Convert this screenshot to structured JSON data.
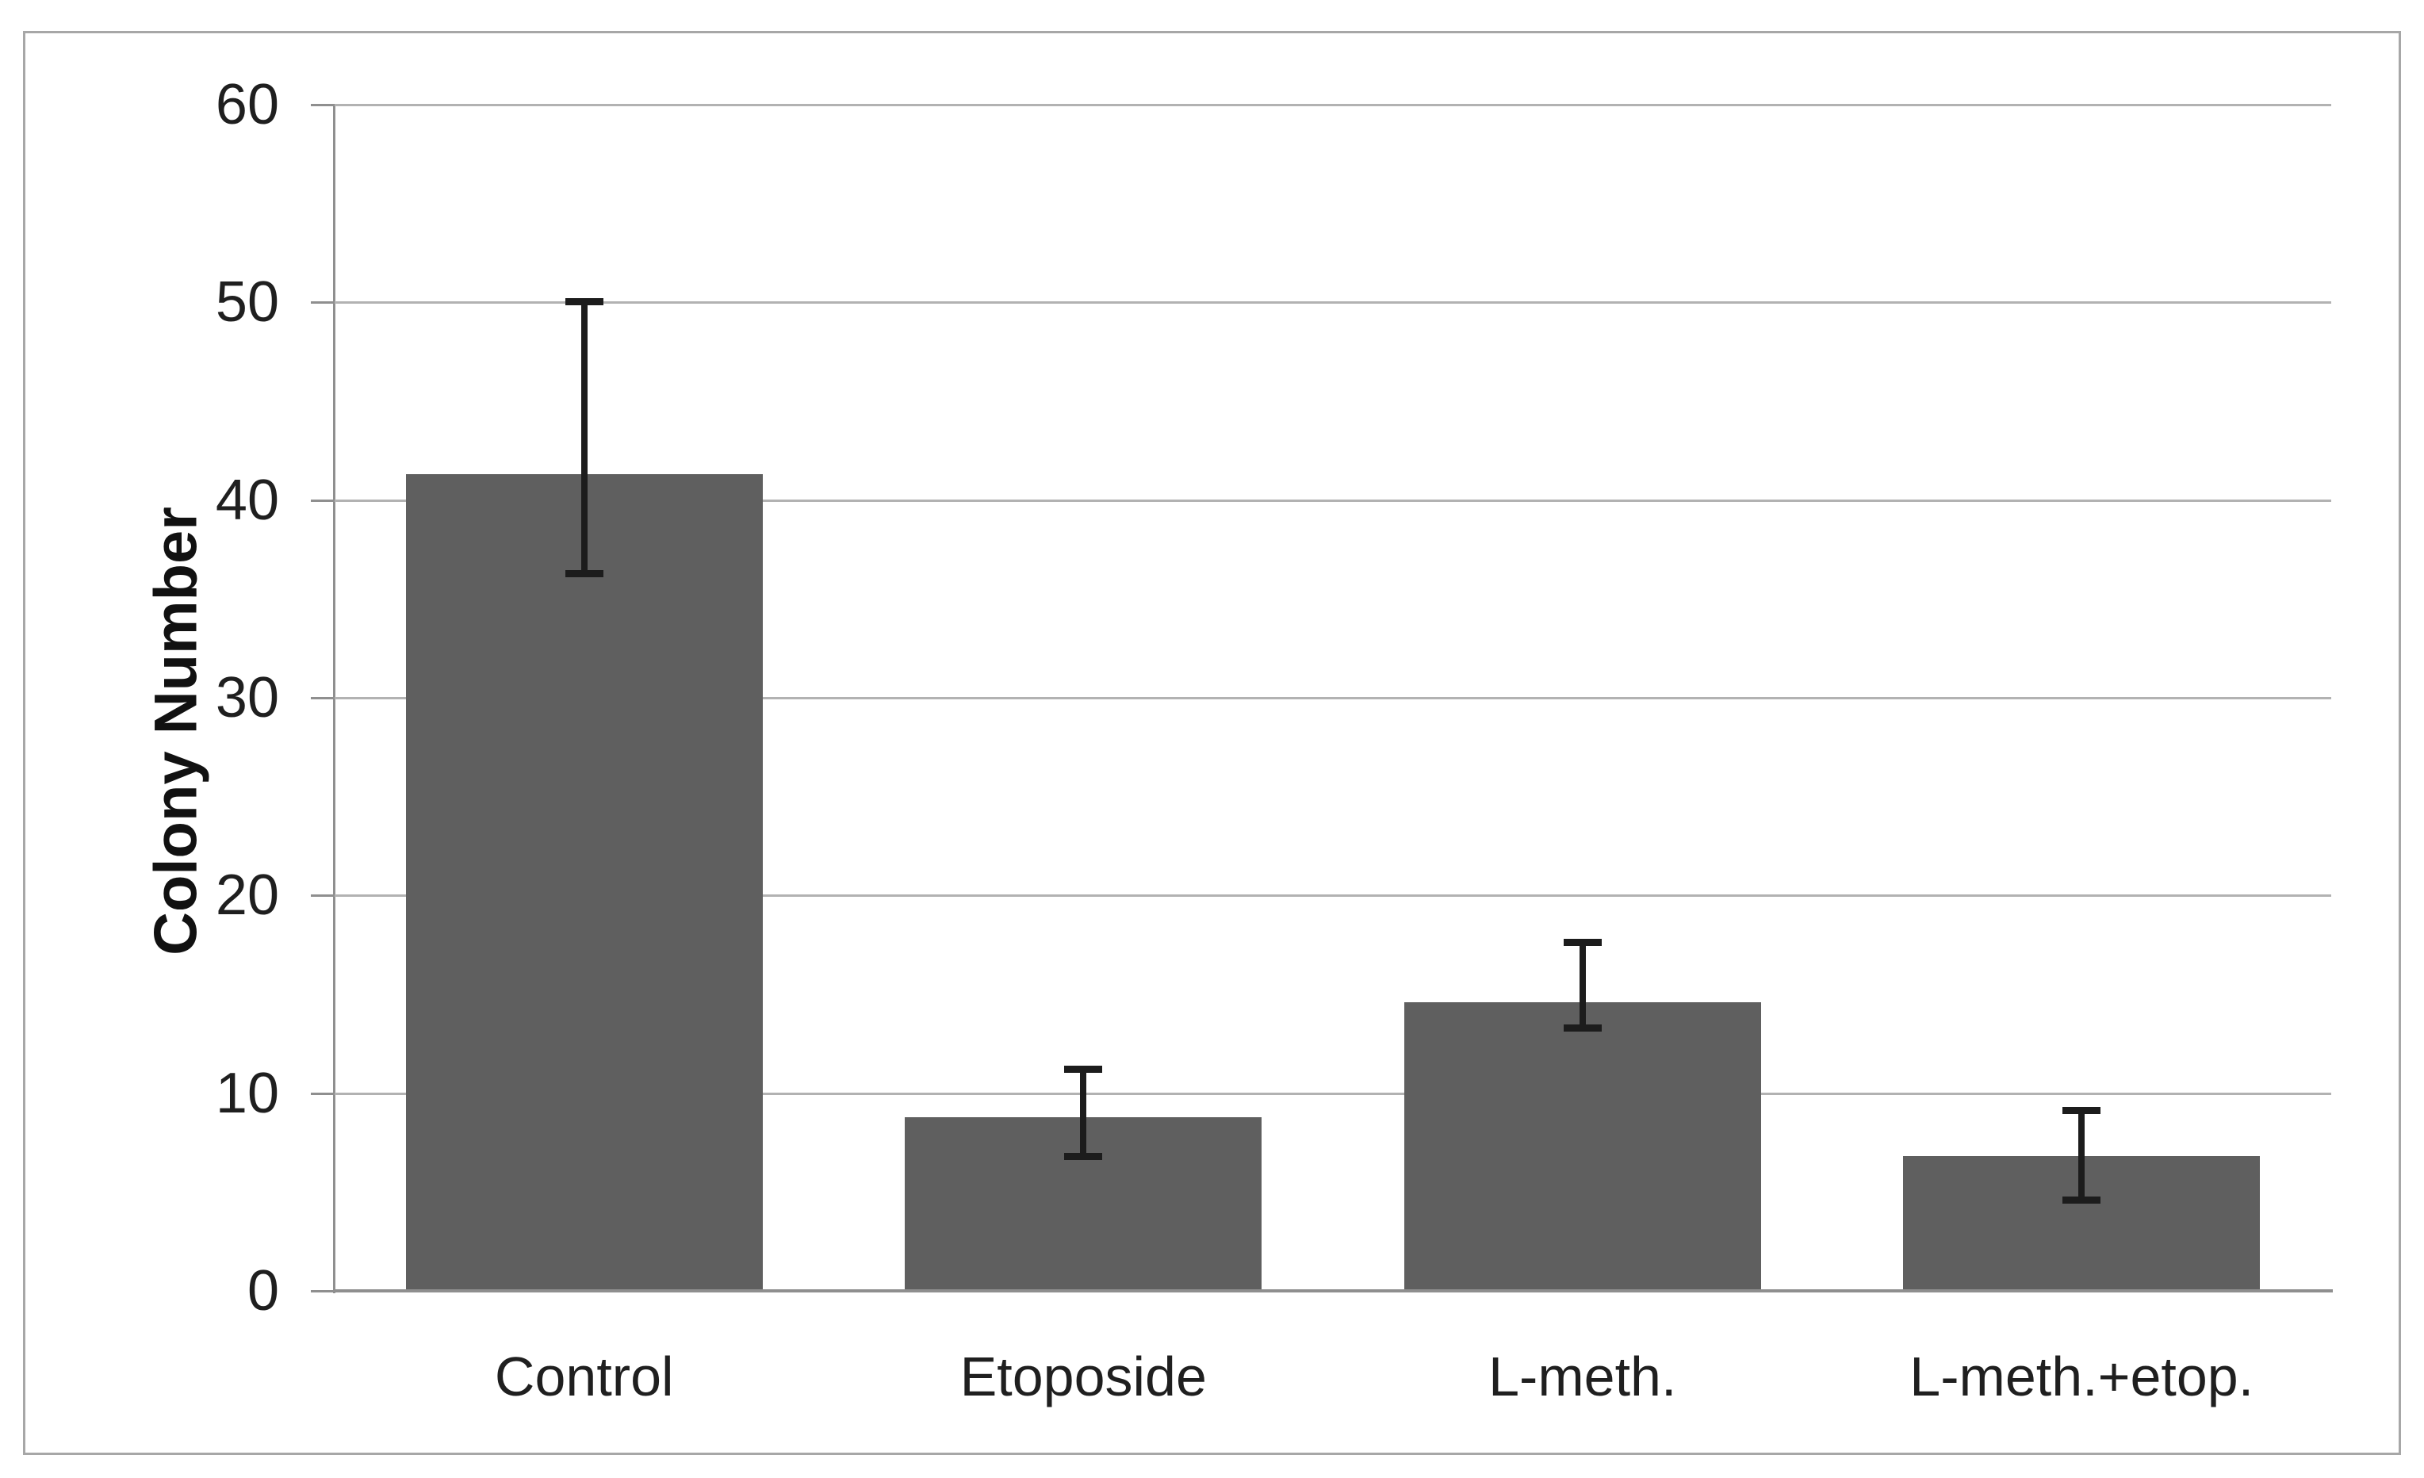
{
  "chart_data": {
    "type": "bar",
    "title": "",
    "xlabel": "",
    "ylabel": "Colony Number",
    "categories": [
      "Control",
      "Etoposide",
      "L-meth.",
      "L-meth.+etop."
    ],
    "values": [
      41.3,
      8.8,
      14.6,
      6.8
    ],
    "error_bars": {
      "upper": [
        50.2,
        11.4,
        17.8,
        9.3
      ],
      "lower": [
        36.1,
        6.6,
        13.1,
        4.4
      ]
    },
    "ylim": [
      0,
      60
    ],
    "yticks": [
      0,
      10,
      20,
      30,
      40,
      50,
      60
    ],
    "grid": "horizontal",
    "legend": "none",
    "colors": {
      "bar_fill": "#5f5f5f",
      "gridline": "#b2b2b2",
      "axis_line": "#8f8f8f",
      "error_bar": "#1c1c1c",
      "frame_border": "#a7a7a7",
      "text": "#1f1f1f",
      "background": "#ffffff"
    }
  }
}
